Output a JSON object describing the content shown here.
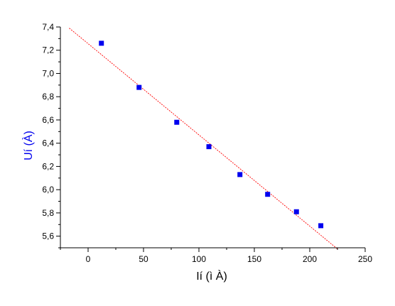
{
  "chart_data": {
    "type": "scatter",
    "xlabel": "Ií  (ì À)",
    "ylabel": "Uí  (À)",
    "xlim": [
      -25,
      250
    ],
    "ylim": [
      5.5,
      7.4
    ],
    "xticks": [
      0,
      50,
      100,
      150,
      200,
      250
    ],
    "yticks": [
      5.6,
      5.8,
      6.0,
      6.2,
      6.4,
      6.6,
      6.8,
      7.0,
      7.2,
      7.4
    ],
    "xtick_labels": [
      "0",
      "50",
      "100",
      "150",
      "200",
      "250"
    ],
    "ytick_labels": [
      "5,6",
      "5,8",
      "6,0",
      "6,2",
      "6,4",
      "6,6",
      "6,8",
      "7,0",
      "7,2",
      "7,4"
    ],
    "grid": false,
    "series": [
      {
        "kind": "scatter",
        "marker": "square",
        "color": "#0000ee",
        "x": [
          12,
          46,
          80,
          109,
          137,
          162,
          188,
          210
        ],
        "y": [
          7.26,
          6.88,
          6.58,
          6.37,
          6.13,
          5.96,
          5.81,
          5.69
        ]
      },
      {
        "kind": "fit-line",
        "style": "dashed",
        "color": "#ff0000",
        "x": [
          -17,
          225
        ],
        "y": [
          7.39,
          5.49
        ]
      }
    ]
  }
}
